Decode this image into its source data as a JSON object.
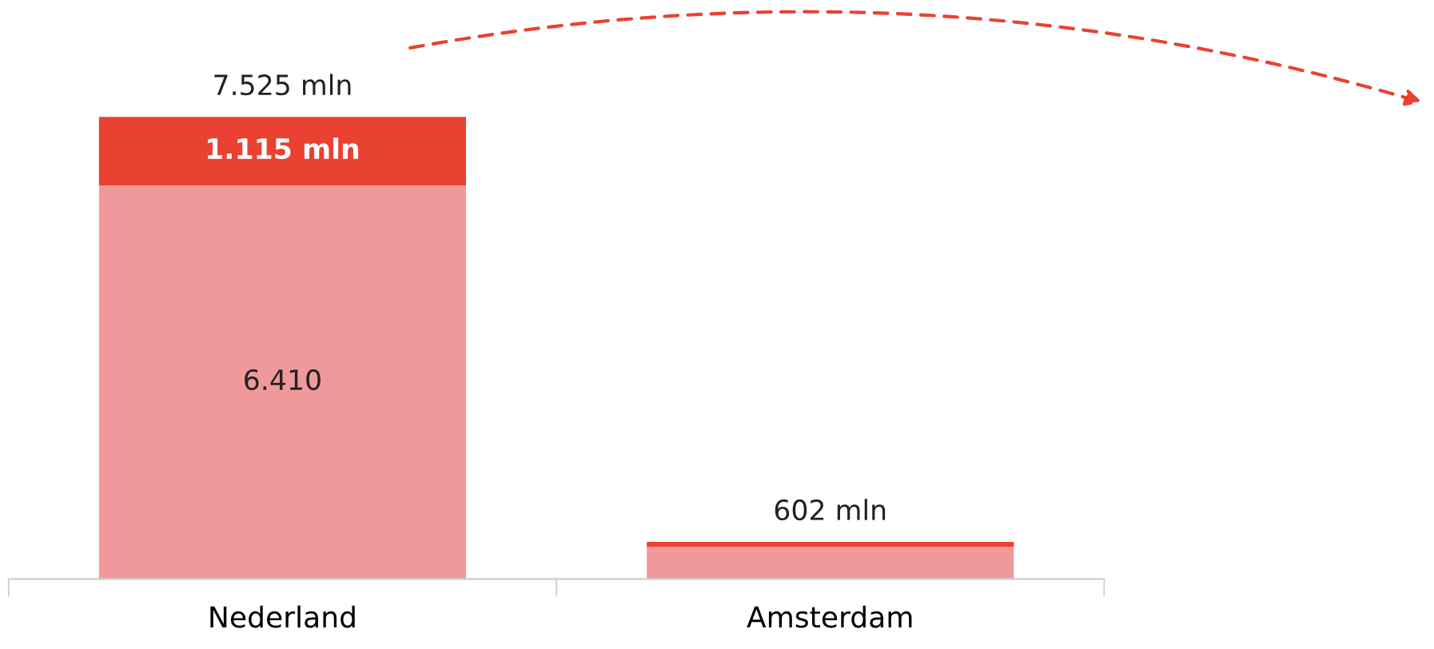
{
  "chart_data": {
    "type": "bar",
    "stacked": true,
    "categories": [
      "Nederland",
      "Amsterdam"
    ],
    "series": [
      {
        "color": "#f0999b",
        "values": [
          6410,
          522
        ],
        "value_labels": [
          "6.410",
          null
        ]
      },
      {
        "color": "#e94232",
        "values": [
          1115,
          80
        ],
        "value_labels": [
          "1.115 mln",
          null
        ]
      }
    ],
    "totals": [
      "7.525 mln",
      "602 mln"
    ],
    "grid": false
  }
}
